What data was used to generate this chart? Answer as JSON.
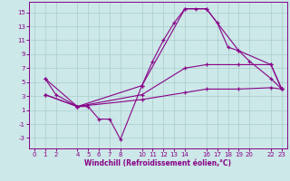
{
  "xlabel": "Windchill (Refroidissement éolien,°C)",
  "background_color": "#cce8e8",
  "grid_color": "#aacccc",
  "line_color": "#880088",
  "xlim": [
    -0.5,
    23.5
  ],
  "ylim": [
    -4.5,
    16.5
  ],
  "xticks": [
    0,
    1,
    2,
    4,
    5,
    6,
    7,
    8,
    10,
    11,
    12,
    13,
    14,
    16,
    17,
    18,
    19,
    20,
    22,
    23
  ],
  "yticks": [
    -3,
    -1,
    1,
    3,
    5,
    7,
    9,
    11,
    13,
    15
  ],
  "line1_x": [
    1,
    2,
    4,
    5,
    6,
    7,
    8,
    10,
    11,
    12,
    13,
    14,
    15,
    16,
    17,
    18,
    19,
    20,
    22,
    23
  ],
  "line1_y": [
    5.5,
    3.2,
    1.5,
    1.5,
    -0.3,
    -0.3,
    -3.2,
    4.5,
    8.0,
    11.0,
    13.5,
    15.5,
    15.5,
    15.5,
    13.5,
    10.0,
    9.5,
    8.0,
    5.5,
    4.0
  ],
  "line2_x": [
    1,
    4,
    10,
    14,
    16,
    19,
    22,
    23
  ],
  "line2_y": [
    5.5,
    1.5,
    4.5,
    15.5,
    15.5,
    9.5,
    7.5,
    4.0
  ],
  "line3_x": [
    1,
    4,
    10,
    14,
    16,
    19,
    22,
    23
  ],
  "line3_y": [
    3.2,
    1.5,
    3.2,
    7.0,
    7.5,
    7.5,
    7.5,
    4.0
  ],
  "line4_x": [
    1,
    4,
    10,
    14,
    16,
    19,
    22,
    23
  ],
  "line4_y": [
    3.2,
    1.5,
    2.5,
    3.5,
    4.0,
    4.0,
    4.2,
    4.0
  ],
  "marker": "+"
}
